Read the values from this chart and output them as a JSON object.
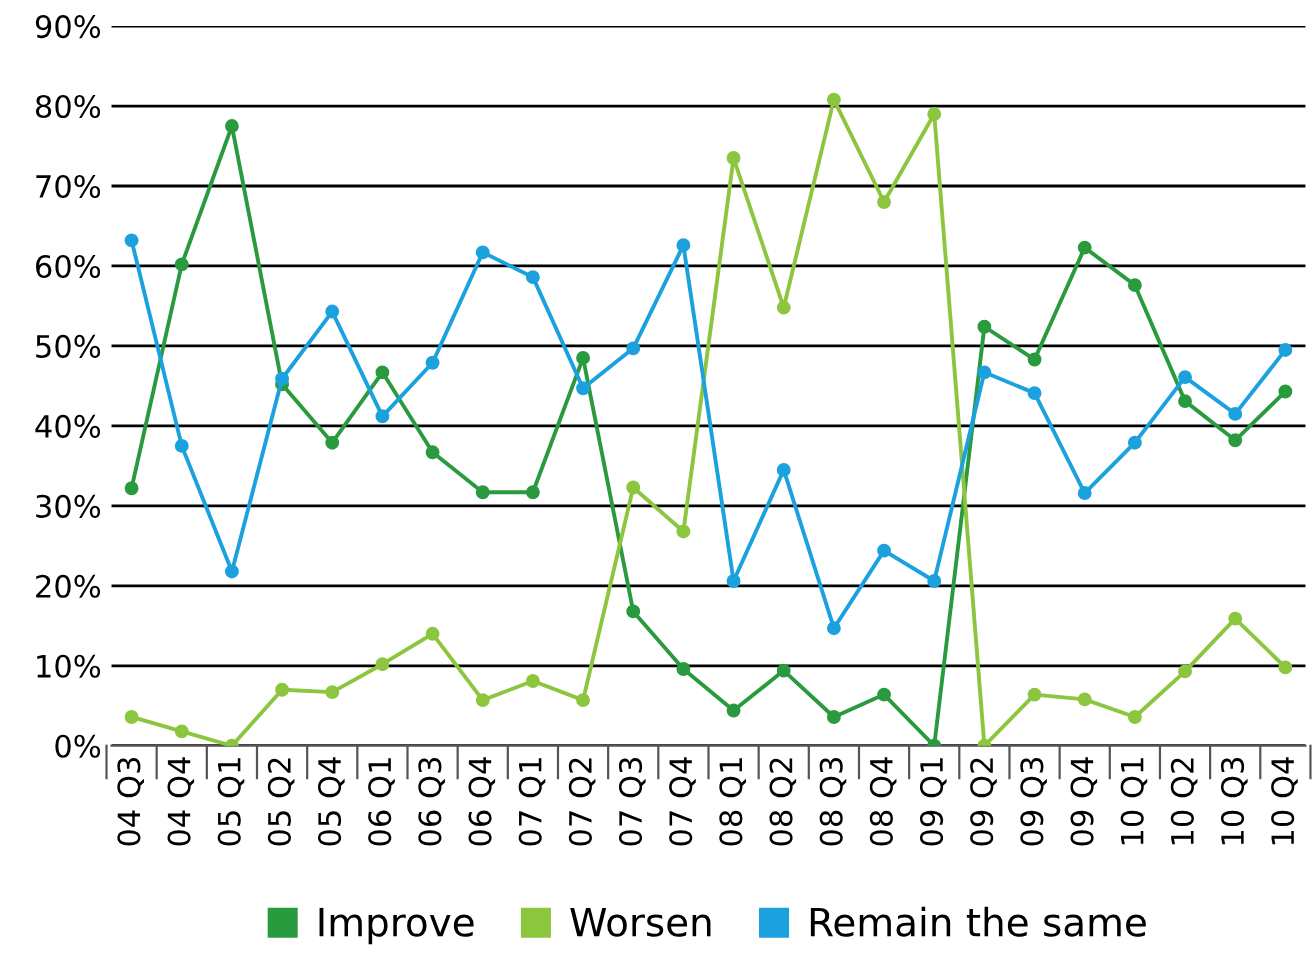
{
  "chart_data": {
    "type": "line",
    "categories": [
      "04 Q3",
      "04 Q4",
      "05 Q1",
      "05 Q2",
      "05 Q4",
      "06 Q1",
      "06 Q3",
      "06 Q4",
      "07 Q1",
      "07 Q2",
      "07 Q3",
      "07 Q4",
      "08 Q1",
      "08 Q2",
      "08 Q3",
      "08 Q4",
      "09 Q1",
      "09 Q2",
      "09 Q3",
      "09 Q4",
      "10 Q1",
      "10 Q2",
      "10 Q3",
      "10 Q4"
    ],
    "series": [
      {
        "name": "Improve",
        "color": "#2a9a3f",
        "values": [
          32.2,
          60.2,
          77.5,
          45.2,
          37.9,
          46.7,
          36.7,
          31.7,
          31.7,
          48.5,
          16.8,
          9.6,
          4.4,
          9.4,
          3.6,
          6.4,
          0,
          52.4,
          48.3,
          62.3,
          57.6,
          43.1,
          38.2,
          44.3
        ]
      },
      {
        "name": "Worsen",
        "color": "#8cc63f",
        "values": [
          3.6,
          1.8,
          0,
          7.0,
          6.7,
          10.2,
          14.0,
          5.7,
          8.1,
          5.7,
          32.3,
          26.8,
          73.5,
          54.8,
          80.8,
          68.0,
          79.0,
          0,
          6.4,
          5.8,
          3.6,
          9.3,
          15.9,
          9.8
        ]
      },
      {
        "name": "Remain the same",
        "color": "#1ba1de",
        "values": [
          63.2,
          37.5,
          21.8,
          45.9,
          54.3,
          41.2,
          47.9,
          61.7,
          58.6,
          44.7,
          49.7,
          62.6,
          20.6,
          34.5,
          14.7,
          24.4,
          20.6,
          46.7,
          44.1,
          31.6,
          37.9,
          46.1,
          41.5,
          49.5
        ]
      }
    ],
    "ylim": [
      0,
      90
    ],
    "yticks": [
      {
        "value": 0,
        "label": "0%"
      },
      {
        "value": 10,
        "label": "10%"
      },
      {
        "value": 20,
        "label": "20%"
      },
      {
        "value": 30,
        "label": "30%"
      },
      {
        "value": 40,
        "label": "40%"
      },
      {
        "value": 50,
        "label": "50%"
      },
      {
        "value": 60,
        "label": "60%"
      },
      {
        "value": 70,
        "label": "70%"
      },
      {
        "value": 80,
        "label": "80%"
      },
      {
        "value": 90,
        "label": "90%"
      }
    ],
    "grid": "y",
    "legend": "bottom",
    "marker": "circle",
    "line_style": "solid"
  }
}
